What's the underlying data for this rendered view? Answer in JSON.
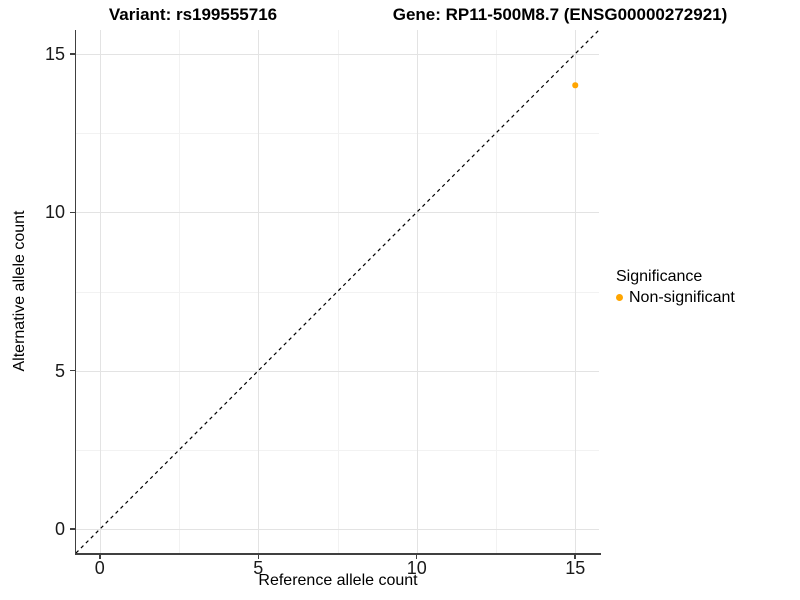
{
  "titles": {
    "left": "Variant: rs199555716",
    "right": "Gene: RP11-500M8.7 (ENSG00000272921)"
  },
  "axes": {
    "x": {
      "label": "Reference allele count"
    },
    "y": {
      "label": "Alternative allele count"
    }
  },
  "legend": {
    "title": "Significance",
    "items": [
      {
        "label": "Non-significant",
        "color": "#FFA500",
        "marker": "dot-icon"
      }
    ]
  },
  "colors": {
    "point": "#FFA500",
    "axis_line": "#404040",
    "grid_major": "#e3e3e3",
    "grid_minor": "#f2f2f2",
    "dashed_line": "#000000",
    "background": "#ffffff"
  },
  "chart_data": {
    "type": "scatter",
    "title": "Variant: rs199555716 / Gene: RP11-500M8.7 (ENSG00000272921)",
    "xlabel": "Reference allele count",
    "ylabel": "Alternative allele count",
    "xlim": [
      -0.75,
      15.75
    ],
    "ylim": [
      -0.75,
      15.75
    ],
    "xticks": [
      0,
      5,
      10,
      15
    ],
    "yticks": [
      0,
      5,
      10,
      15
    ],
    "minor_gridlines": [
      2.5,
      7.5,
      12.5
    ],
    "grid": true,
    "series": [
      {
        "name": "Non-significant",
        "color": "#FFA500",
        "points": [
          {
            "x": 15,
            "y": 14
          }
        ]
      }
    ],
    "reference_line": {
      "type": "identity y=x",
      "style": "dashed",
      "color": "#000000"
    },
    "legend": {
      "position": "right",
      "title": "Significance",
      "entries": [
        "Non-significant"
      ]
    }
  }
}
